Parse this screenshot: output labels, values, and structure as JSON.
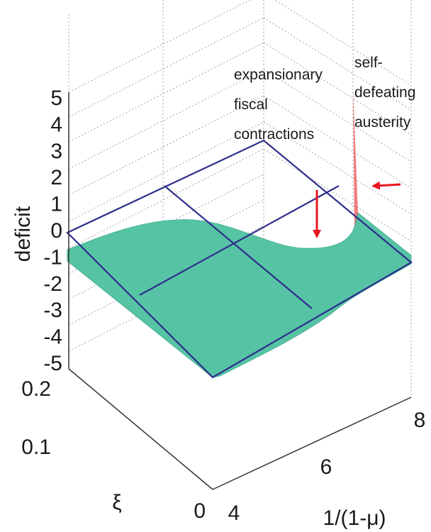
{
  "chart_data": {
    "type": "surface",
    "xlabel": "1/(1-μ)",
    "ylabel": "ξ",
    "zlabel": "deficit",
    "xlim": [
      4,
      8
    ],
    "ylim": [
      0,
      0.2
    ],
    "zlim": [
      -5,
      5
    ],
    "x_ticks": [
      "4",
      "6",
      "8"
    ],
    "y_ticks": [
      "0",
      "0.1",
      "0.2"
    ],
    "z_ticks": [
      "5",
      "4",
      "3",
      "2",
      "1",
      "0",
      "-1",
      "-2",
      "-3",
      "-4",
      "-5"
    ],
    "grid": true,
    "colormap": "jet",
    "reference_plane_z": 0,
    "surface": {
      "x": [
        4,
        5,
        6,
        6.5,
        7,
        7.5,
        8
      ],
      "xi": [
        0,
        0.1,
        0.2
      ],
      "deficit": [
        [
          -0.9,
          -0.95,
          -1.0,
          -1.1,
          -1.3,
          -2.0,
          -1.2
        ],
        [
          -0.7,
          -0.75,
          -0.8,
          -0.9,
          -1.1,
          -3.0,
          -1.0
        ],
        [
          -0.5,
          -0.55,
          -0.6,
          -0.7,
          -0.9,
          4.5,
          -0.8
        ]
      ]
    },
    "annotations": [
      {
        "text": "expansionary fiscal contractions",
        "lines": [
          "expansionary",
          "fiscal",
          "contractions"
        ],
        "arrow_color": "#e8151f"
      },
      {
        "text": "self-defeating austerity",
        "lines": [
          "self-",
          "defeating",
          "austerity"
        ],
        "arrow_color": "#e8151f"
      }
    ],
    "colors": {
      "surface": "#56c4a4",
      "plane": "#2e2e8c",
      "arrow": "#e8151f",
      "grid": "#9a9a9a"
    }
  }
}
